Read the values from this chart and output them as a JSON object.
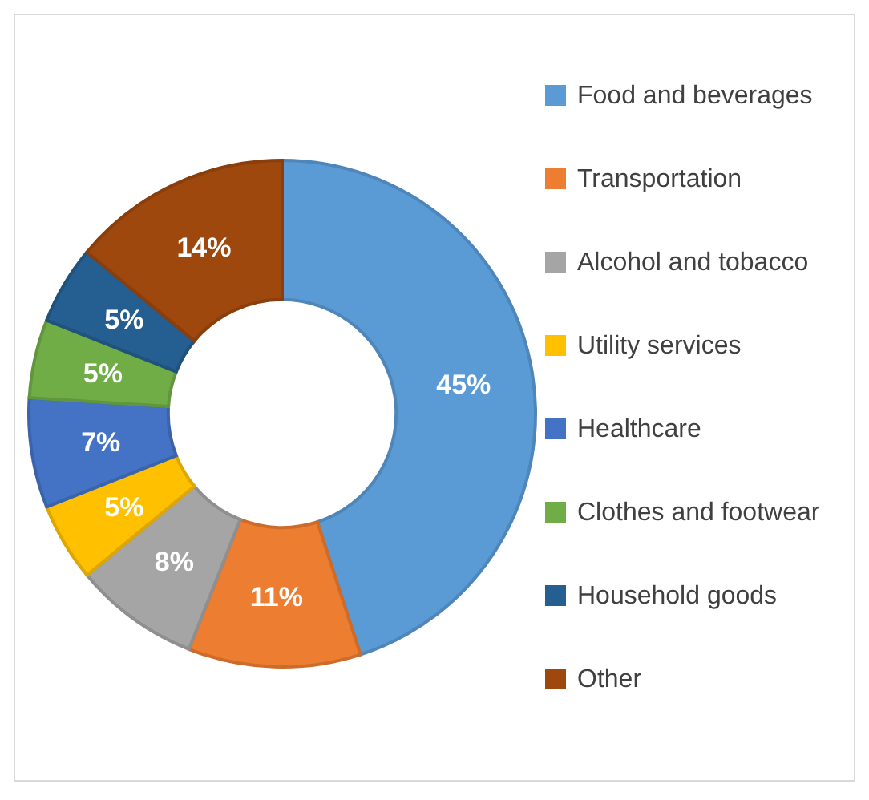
{
  "chart_data": {
    "type": "donut",
    "categories": [
      "Food and beverages",
      "Transportation",
      "Alcohol and tobacco",
      "Utility services",
      "Healthcare",
      "Clothes and footwear",
      "Household goods",
      "Other"
    ],
    "values": [
      45,
      11,
      8,
      5,
      7,
      5,
      5,
      14
    ],
    "value_labels": [
      "45%",
      "11%",
      "8%",
      "5%",
      "7%",
      "5%",
      "5%",
      "14%"
    ],
    "colors": [
      "#5b9bd5",
      "#ed7d31",
      "#a5a5a5",
      "#ffc000",
      "#4472c4",
      "#70ad47",
      "#255e91",
      "#9e480e"
    ],
    "legend": "right"
  }
}
